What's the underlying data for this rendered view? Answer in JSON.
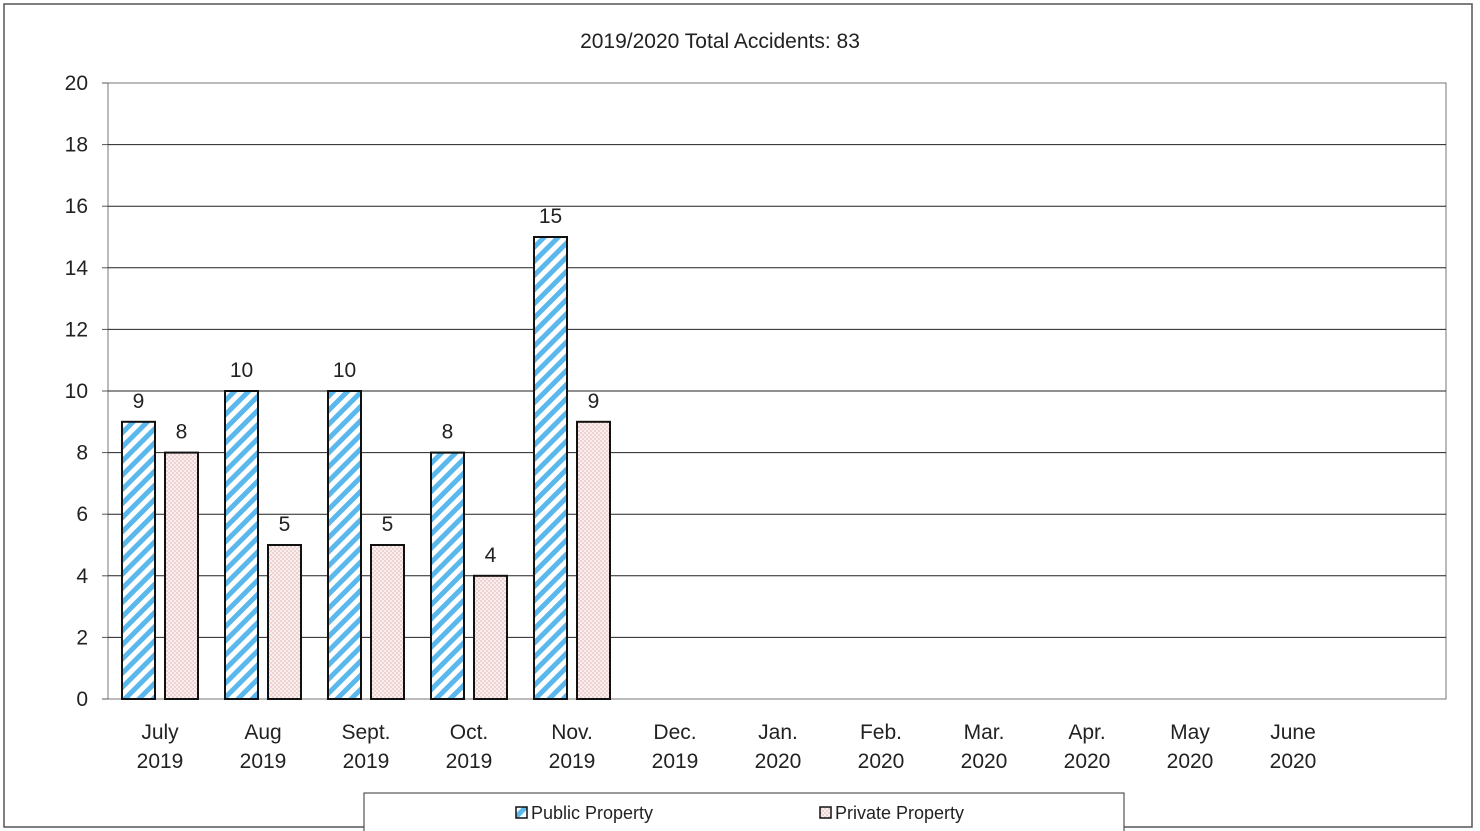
{
  "chart_data": {
    "type": "bar",
    "title": "2019/2020 Total Accidents: 83",
    "xlabel": "",
    "ylabel": "",
    "ylim": [
      0,
      20
    ],
    "yticks": [
      0,
      2,
      4,
      6,
      8,
      10,
      12,
      14,
      16,
      18,
      20
    ],
    "grid": true,
    "legend_position": "bottom",
    "categories": [
      [
        "July",
        "2019"
      ],
      [
        "Aug",
        "2019"
      ],
      [
        "Sept.",
        "2019"
      ],
      [
        "Oct.",
        "2019"
      ],
      [
        "Nov.",
        "2019"
      ],
      [
        "Dec.",
        "2019"
      ],
      [
        "Jan.",
        "2020"
      ],
      [
        "Feb.",
        "2020"
      ],
      [
        "Mar.",
        "2020"
      ],
      [
        "Apr.",
        "2020"
      ],
      [
        "May",
        "2020"
      ],
      [
        "June",
        "2020"
      ]
    ],
    "series": [
      {
        "name": "Public Property",
        "values": [
          9,
          10,
          10,
          8,
          15,
          null,
          null,
          null,
          null,
          null,
          null,
          null
        ],
        "color": "#5bb8ec",
        "pattern": "diagonal-stripes"
      },
      {
        "name": "Private Property",
        "values": [
          8,
          5,
          5,
          4,
          9,
          null,
          null,
          null,
          null,
          null,
          null,
          null
        ],
        "color": "#f7e6e6",
        "pattern": "dots"
      }
    ]
  }
}
